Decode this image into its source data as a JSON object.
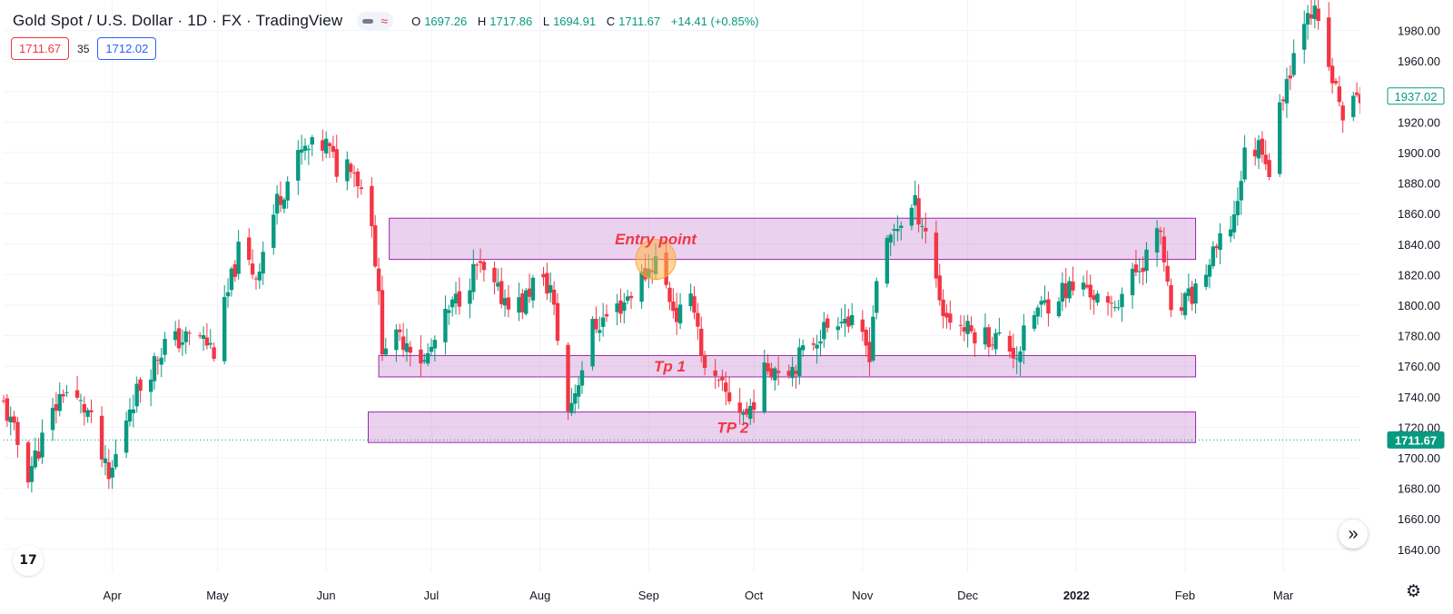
{
  "header": {
    "title": "Gold Spot / U.S. Dollar · 1D · FX · TradingView",
    "ohlc": [
      {
        "k": "O",
        "v": "1697.26"
      },
      {
        "k": "H",
        "v": "1717.86"
      },
      {
        "k": "L",
        "v": "1694.91"
      },
      {
        "k": "C",
        "v": "1711.67"
      }
    ],
    "change": "+14.41 (+0.85%)"
  },
  "quote": {
    "sell": "1711.67",
    "spread": "35",
    "buy": "1712.02"
  },
  "colors": {
    "up": "#089981",
    "down": "#f23645",
    "zone_fill": "rgba(186,104,200,0.30)",
    "zone_border": "#9c27b0",
    "annotation": "#f23645"
  },
  "icons": {
    "goto_realtime": "double-chevron-right-icon",
    "logo": "tradingview-logo-icon",
    "settings": "gear-icon"
  },
  "chart_data": {
    "type": "candlestick",
    "y_ticks": [
      1640,
      1660,
      1680,
      1700,
      1720,
      1740,
      1760,
      1780,
      1800,
      1820,
      1840,
      1860,
      1880,
      1900,
      1920,
      1940,
      1960,
      1980
    ],
    "ylim": [
      1625,
      2000
    ],
    "y_tick_labels": [
      "1640.00",
      "1660.00",
      "1680.00",
      "1700.00",
      "1720.00",
      "1740.00",
      "1760.00",
      "1780.00",
      "1800.00",
      "1820.00",
      "1840.00",
      "1860.00",
      "1880.00",
      "1900.00",
      "1920.00",
      "1960.00",
      "1980.00"
    ],
    "x_labels": [
      {
        "label": "Apr",
        "date": "2021-04-01"
      },
      {
        "label": "May",
        "date": "2021-05-01"
      },
      {
        "label": "Jun",
        "date": "2021-06-01"
      },
      {
        "label": "Jul",
        "date": "2021-07-01"
      },
      {
        "label": "Aug",
        "date": "2021-08-01"
      },
      {
        "label": "Sep",
        "date": "2021-09-01"
      },
      {
        "label": "Oct",
        "date": "2021-10-01"
      },
      {
        "label": "Nov",
        "date": "2021-11-01"
      },
      {
        "label": "Dec",
        "date": "2021-12-01"
      },
      {
        "label": "2022",
        "date": "2022-01-01",
        "bold": true
      },
      {
        "label": "Feb",
        "date": "2022-02-01"
      },
      {
        "label": "Mar",
        "date": "2022-03-01"
      }
    ],
    "xlim": [
      "2021-03-01",
      "2022-03-23"
    ],
    "price_labels": [
      {
        "value": 1937.02,
        "text": "1937.02",
        "style": "outline"
      },
      {
        "value": 1711.67,
        "text": "1711.67",
        "style": "filled"
      }
    ],
    "current_price_line": 1711.67,
    "zones": [
      {
        "name": "Entry point",
        "from": "2021-06-19",
        "to": "2022-02-04",
        "low": 1830,
        "high": 1857
      },
      {
        "name": "Tp 1",
        "from": "2021-06-16",
        "to": "2022-02-04",
        "low": 1753,
        "high": 1767
      },
      {
        "name": "TP 2",
        "from": "2021-06-13",
        "to": "2022-02-04",
        "low": 1710,
        "high": 1730
      }
    ],
    "entry_marker": {
      "date": "2021-09-03",
      "price": 1830
    },
    "anchors": [
      {
        "date": "2021-03-01",
        "price": 1735
      },
      {
        "date": "2021-03-08",
        "price": 1690
      },
      {
        "date": "2021-03-18",
        "price": 1745
      },
      {
        "date": "2021-03-25",
        "price": 1730
      },
      {
        "date": "2021-03-31",
        "price": 1684
      },
      {
        "date": "2021-04-06",
        "price": 1735
      },
      {
        "date": "2021-04-16",
        "price": 1775
      },
      {
        "date": "2021-04-26",
        "price": 1780
      },
      {
        "date": "2021-04-30",
        "price": 1770
      },
      {
        "date": "2021-05-07",
        "price": 1835
      },
      {
        "date": "2021-05-12",
        "price": 1820
      },
      {
        "date": "2021-05-18",
        "price": 1868
      },
      {
        "date": "2021-05-25",
        "price": 1900
      },
      {
        "date": "2021-06-01",
        "price": 1905
      },
      {
        "date": "2021-06-04",
        "price": 1890
      },
      {
        "date": "2021-06-08",
        "price": 1895
      },
      {
        "date": "2021-06-14",
        "price": 1858
      },
      {
        "date": "2021-06-17",
        "price": 1775
      },
      {
        "date": "2021-06-24",
        "price": 1778
      },
      {
        "date": "2021-06-29",
        "price": 1762
      },
      {
        "date": "2021-07-06",
        "price": 1795
      },
      {
        "date": "2021-07-14",
        "price": 1825
      },
      {
        "date": "2021-07-20",
        "price": 1807
      },
      {
        "date": "2021-07-27",
        "price": 1800
      },
      {
        "date": "2021-07-30",
        "price": 1815
      },
      {
        "date": "2021-08-04",
        "price": 1812
      },
      {
        "date": "2021-08-09",
        "price": 1730
      },
      {
        "date": "2021-08-12",
        "price": 1752
      },
      {
        "date": "2021-08-16",
        "price": 1785
      },
      {
        "date": "2021-08-24",
        "price": 1800
      },
      {
        "date": "2021-09-03",
        "price": 1830
      },
      {
        "date": "2021-09-09",
        "price": 1793
      },
      {
        "date": "2021-09-14",
        "price": 1802
      },
      {
        "date": "2021-09-17",
        "price": 1755
      },
      {
        "date": "2021-09-29",
        "price": 1728
      },
      {
        "date": "2021-10-05",
        "price": 1760
      },
      {
        "date": "2021-10-12",
        "price": 1760
      },
      {
        "date": "2021-10-19",
        "price": 1780
      },
      {
        "date": "2021-10-26",
        "price": 1795
      },
      {
        "date": "2021-11-03",
        "price": 1770
      },
      {
        "date": "2021-11-05",
        "price": 1818
      },
      {
        "date": "2021-11-10",
        "price": 1850
      },
      {
        "date": "2021-11-16",
        "price": 1865
      },
      {
        "date": "2021-11-19",
        "price": 1850
      },
      {
        "date": "2021-11-24",
        "price": 1795
      },
      {
        "date": "2021-12-01",
        "price": 1783
      },
      {
        "date": "2021-12-10",
        "price": 1778
      },
      {
        "date": "2021-12-15",
        "price": 1768
      },
      {
        "date": "2021-12-20",
        "price": 1795
      },
      {
        "date": "2021-12-28",
        "price": 1810
      },
      {
        "date": "2022-01-04",
        "price": 1812
      },
      {
        "date": "2022-01-10",
        "price": 1795
      },
      {
        "date": "2022-01-17",
        "price": 1818
      },
      {
        "date": "2022-01-25",
        "price": 1848
      },
      {
        "date": "2022-01-28",
        "price": 1790
      },
      {
        "date": "2022-02-03",
        "price": 1806
      },
      {
        "date": "2022-02-10",
        "price": 1835
      },
      {
        "date": "2022-02-15",
        "price": 1858
      },
      {
        "date": "2022-02-18",
        "price": 1898
      },
      {
        "date": "2022-02-23",
        "price": 1906
      },
      {
        "date": "2022-02-25",
        "price": 1888
      },
      {
        "date": "2022-03-01",
        "price": 1940
      },
      {
        "date": "2022-03-08",
        "price": 1998
      },
      {
        "date": "2022-03-10",
        "price": 1990
      },
      {
        "date": "2022-03-14",
        "price": 1955
      },
      {
        "date": "2022-03-18",
        "price": 1925
      },
      {
        "date": "2022-03-23",
        "price": 1937
      }
    ]
  }
}
